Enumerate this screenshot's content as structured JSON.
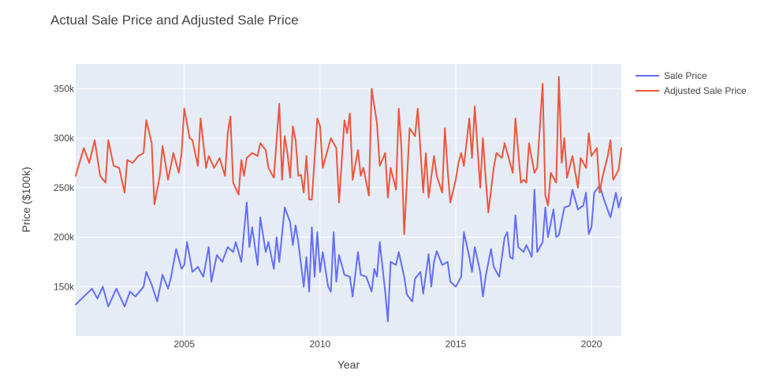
{
  "chart_data": {
    "type": "line",
    "title": "Actual Sale Price and Adjusted Sale Price",
    "xlabel": "Year",
    "ylabel": "Price ($100k)",
    "xlim": [
      2001.0,
      2021.1
    ],
    "ylim": [
      100000,
      375000
    ],
    "x_ticks": [
      2005,
      2010,
      2015,
      2020
    ],
    "x_tick_labels": [
      "2005",
      "2010",
      "2015",
      "2020"
    ],
    "y_ticks": [
      150000,
      200000,
      250000,
      300000,
      350000
    ],
    "y_tick_labels": [
      "150k",
      "200k",
      "250k",
      "300k",
      "350k"
    ],
    "grid": true,
    "legend_position": "right",
    "plot_bgcolor": "#E5ECF6",
    "series": [
      {
        "name": "Sale Price",
        "color": "#636EFA",
        "keypoints": [
          [
            2001.0,
            132000
          ],
          [
            2001.3,
            140000
          ],
          [
            2001.6,
            148000
          ],
          [
            2001.8,
            138000
          ],
          [
            2002.0,
            150000
          ],
          [
            2002.2,
            130000
          ],
          [
            2002.5,
            148000
          ],
          [
            2002.8,
            130000
          ],
          [
            2003.0,
            145000
          ],
          [
            2003.2,
            140000
          ],
          [
            2003.5,
            150000
          ],
          [
            2003.6,
            165000
          ],
          [
            2003.8,
            152000
          ],
          [
            2004.0,
            135000
          ],
          [
            2004.2,
            162000
          ],
          [
            2004.4,
            148000
          ],
          [
            2004.5,
            158000
          ],
          [
            2004.7,
            188000
          ],
          [
            2004.9,
            168000
          ],
          [
            2005.0,
            172000
          ],
          [
            2005.1,
            195000
          ],
          [
            2005.3,
            165000
          ],
          [
            2005.5,
            170000
          ],
          [
            2005.7,
            160000
          ],
          [
            2005.9,
            190000
          ],
          [
            2006.0,
            155000
          ],
          [
            2006.2,
            182000
          ],
          [
            2006.4,
            175000
          ],
          [
            2006.6,
            190000
          ],
          [
            2006.8,
            185000
          ],
          [
            2006.9,
            195000
          ],
          [
            2007.1,
            175000
          ],
          [
            2007.3,
            235000
          ],
          [
            2007.4,
            190000
          ],
          [
            2007.5,
            210000
          ],
          [
            2007.7,
            172000
          ],
          [
            2007.8,
            220000
          ],
          [
            2008.0,
            185000
          ],
          [
            2008.1,
            195000
          ],
          [
            2008.3,
            168000
          ],
          [
            2008.4,
            200000
          ],
          [
            2008.5,
            175000
          ],
          [
            2008.7,
            230000
          ],
          [
            2008.9,
            215000
          ],
          [
            2009.0,
            192000
          ],
          [
            2009.1,
            212000
          ],
          [
            2009.2,
            195000
          ],
          [
            2009.4,
            150000
          ],
          [
            2009.5,
            180000
          ],
          [
            2009.6,
            145000
          ],
          [
            2009.7,
            210000
          ],
          [
            2009.8,
            160000
          ],
          [
            2009.9,
            205000
          ],
          [
            2010.0,
            165000
          ],
          [
            2010.1,
            185000
          ],
          [
            2010.3,
            150000
          ],
          [
            2010.4,
            145000
          ],
          [
            2010.5,
            205000
          ],
          [
            2010.6,
            155000
          ],
          [
            2010.7,
            182000
          ],
          [
            2010.9,
            162000
          ],
          [
            2011.1,
            160000
          ],
          [
            2011.2,
            140000
          ],
          [
            2011.4,
            185000
          ],
          [
            2011.5,
            162000
          ],
          [
            2011.7,
            160000
          ],
          [
            2011.9,
            145000
          ],
          [
            2012.0,
            168000
          ],
          [
            2012.1,
            160000
          ],
          [
            2012.2,
            195000
          ],
          [
            2012.4,
            145000
          ],
          [
            2012.5,
            115000
          ],
          [
            2012.6,
            175000
          ],
          [
            2012.8,
            172000
          ],
          [
            2012.9,
            185000
          ],
          [
            2013.1,
            160000
          ],
          [
            2013.2,
            142000
          ],
          [
            2013.4,
            135000
          ],
          [
            2013.5,
            158000
          ],
          [
            2013.7,
            165000
          ],
          [
            2013.8,
            143000
          ],
          [
            2014.0,
            183000
          ],
          [
            2014.1,
            150000
          ],
          [
            2014.2,
            175000
          ],
          [
            2014.3,
            186000
          ],
          [
            2014.5,
            172000
          ],
          [
            2014.7,
            175000
          ],
          [
            2014.8,
            155000
          ],
          [
            2015.0,
            150000
          ],
          [
            2015.2,
            160000
          ],
          [
            2015.3,
            205000
          ],
          [
            2015.5,
            180000
          ],
          [
            2015.6,
            165000
          ],
          [
            2015.7,
            190000
          ],
          [
            2015.9,
            165000
          ],
          [
            2016.0,
            140000
          ],
          [
            2016.1,
            160000
          ],
          [
            2016.3,
            188000
          ],
          [
            2016.4,
            170000
          ],
          [
            2016.6,
            160000
          ],
          [
            2016.8,
            200000
          ],
          [
            2016.9,
            205000
          ],
          [
            2017.0,
            180000
          ],
          [
            2017.1,
            178000
          ],
          [
            2017.2,
            222000
          ],
          [
            2017.3,
            190000
          ],
          [
            2017.5,
            185000
          ],
          [
            2017.6,
            192000
          ],
          [
            2017.8,
            180000
          ],
          [
            2017.9,
            248000
          ],
          [
            2018.0,
            185000
          ],
          [
            2018.2,
            195000
          ],
          [
            2018.3,
            230000
          ],
          [
            2018.4,
            200000
          ],
          [
            2018.6,
            228000
          ],
          [
            2018.7,
            200000
          ],
          [
            2018.8,
            202000
          ],
          [
            2019.0,
            230000
          ],
          [
            2019.2,
            232000
          ],
          [
            2019.3,
            248000
          ],
          [
            2019.5,
            228000
          ],
          [
            2019.7,
            232000
          ],
          [
            2019.8,
            245000
          ],
          [
            2019.9,
            203000
          ],
          [
            2020.0,
            210000
          ],
          [
            2020.1,
            245000
          ],
          [
            2020.3,
            252000
          ],
          [
            2020.5,
            235000
          ],
          [
            2020.7,
            220000
          ],
          [
            2020.9,
            245000
          ],
          [
            2021.0,
            230000
          ],
          [
            2021.1,
            240000
          ]
        ],
        "keypoints_note": null
      },
      {
        "name": "Adjusted Sale Price",
        "color": "#EF553B",
        "keypoints": [
          [
            2001.0,
            262000
          ],
          [
            2001.3,
            290000
          ],
          [
            2001.5,
            275000
          ],
          [
            2001.7,
            298000
          ],
          [
            2001.9,
            262000
          ],
          [
            2002.1,
            255000
          ],
          [
            2002.2,
            298000
          ],
          [
            2002.4,
            272000
          ],
          [
            2002.6,
            270000
          ],
          [
            2002.8,
            245000
          ],
          [
            2002.9,
            278000
          ],
          [
            2003.1,
            275000
          ],
          [
            2003.3,
            282000
          ],
          [
            2003.5,
            285000
          ],
          [
            2003.6,
            318000
          ],
          [
            2003.8,
            295000
          ],
          [
            2003.9,
            233000
          ],
          [
            2004.1,
            262000
          ],
          [
            2004.2,
            292000
          ],
          [
            2004.4,
            258000
          ],
          [
            2004.6,
            285000
          ],
          [
            2004.8,
            265000
          ],
          [
            2004.9,
            285000
          ],
          [
            2005.0,
            330000
          ],
          [
            2005.2,
            300000
          ],
          [
            2005.3,
            298000
          ],
          [
            2005.5,
            272000
          ],
          [
            2005.6,
            320000
          ],
          [
            2005.8,
            270000
          ],
          [
            2005.9,
            282000
          ],
          [
            2006.1,
            270000
          ],
          [
            2006.3,
            280000
          ],
          [
            2006.5,
            262000
          ],
          [
            2006.6,
            305000
          ],
          [
            2006.7,
            322000
          ],
          [
            2006.8,
            255000
          ],
          [
            2007.0,
            243000
          ],
          [
            2007.1,
            278000
          ],
          [
            2007.2,
            262000
          ],
          [
            2007.3,
            280000
          ],
          [
            2007.5,
            285000
          ],
          [
            2007.7,
            282000
          ],
          [
            2007.8,
            295000
          ],
          [
            2008.0,
            288000
          ],
          [
            2008.1,
            270000
          ],
          [
            2008.3,
            260000
          ],
          [
            2008.5,
            335000
          ],
          [
            2008.6,
            258000
          ],
          [
            2008.7,
            302000
          ],
          [
            2008.8,
            285000
          ],
          [
            2008.9,
            260000
          ],
          [
            2009.0,
            312000
          ],
          [
            2009.1,
            298000
          ],
          [
            2009.2,
            262000
          ],
          [
            2009.3,
            263000
          ],
          [
            2009.4,
            245000
          ],
          [
            2009.5,
            282000
          ],
          [
            2009.6,
            238000
          ],
          [
            2009.7,
            238000
          ],
          [
            2009.9,
            320000
          ],
          [
            2010.0,
            312000
          ],
          [
            2010.1,
            270000
          ],
          [
            2010.2,
            280000
          ],
          [
            2010.4,
            300000
          ],
          [
            2010.6,
            290000
          ],
          [
            2010.7,
            235000
          ],
          [
            2010.9,
            318000
          ],
          [
            2011.0,
            305000
          ],
          [
            2011.1,
            325000
          ],
          [
            2011.2,
            258000
          ],
          [
            2011.4,
            288000
          ],
          [
            2011.5,
            262000
          ],
          [
            2011.6,
            270000
          ],
          [
            2011.8,
            242000
          ],
          [
            2011.9,
            350000
          ],
          [
            2012.1,
            315000
          ],
          [
            2012.2,
            272000
          ],
          [
            2012.4,
            285000
          ],
          [
            2012.5,
            240000
          ],
          [
            2012.6,
            270000
          ],
          [
            2012.8,
            248000
          ],
          [
            2012.9,
            330000
          ],
          [
            2013.0,
            290000
          ],
          [
            2013.1,
            203000
          ],
          [
            2013.3,
            310000
          ],
          [
            2013.5,
            302000
          ],
          [
            2013.6,
            330000
          ],
          [
            2013.8,
            245000
          ],
          [
            2013.9,
            285000
          ],
          [
            2014.0,
            240000
          ],
          [
            2014.2,
            282000
          ],
          [
            2014.3,
            262000
          ],
          [
            2014.5,
            245000
          ],
          [
            2014.6,
            310000
          ],
          [
            2014.7,
            268000
          ],
          [
            2014.8,
            235000
          ],
          [
            2015.0,
            258000
          ],
          [
            2015.1,
            275000
          ],
          [
            2015.2,
            285000
          ],
          [
            2015.3,
            272000
          ],
          [
            2015.5,
            320000
          ],
          [
            2015.6,
            280000
          ],
          [
            2015.7,
            332000
          ],
          [
            2015.9,
            250000
          ],
          [
            2016.0,
            300000
          ],
          [
            2016.1,
            260000
          ],
          [
            2016.2,
            225000
          ],
          [
            2016.4,
            270000
          ],
          [
            2016.5,
            285000
          ],
          [
            2016.7,
            280000
          ],
          [
            2016.8,
            295000
          ],
          [
            2016.9,
            285000
          ],
          [
            2017.1,
            265000
          ],
          [
            2017.2,
            320000
          ],
          [
            2017.4,
            255000
          ],
          [
            2017.5,
            258000
          ],
          [
            2017.6,
            255000
          ],
          [
            2017.7,
            295000
          ],
          [
            2017.9,
            265000
          ],
          [
            2018.0,
            270000
          ],
          [
            2018.2,
            355000
          ],
          [
            2018.3,
            242000
          ],
          [
            2018.4,
            232000
          ],
          [
            2018.5,
            265000
          ],
          [
            2018.7,
            255000
          ],
          [
            2018.8,
            362000
          ],
          [
            2018.9,
            275000
          ],
          [
            2019.0,
            300000
          ],
          [
            2019.1,
            260000
          ],
          [
            2019.3,
            282000
          ],
          [
            2019.5,
            250000
          ],
          [
            2019.6,
            280000
          ],
          [
            2019.8,
            270000
          ],
          [
            2019.9,
            305000
          ],
          [
            2020.0,
            282000
          ],
          [
            2020.2,
            290000
          ],
          [
            2020.3,
            245000
          ],
          [
            2020.4,
            260000
          ],
          [
            2020.6,
            282000
          ],
          [
            2020.7,
            298000
          ],
          [
            2020.8,
            258000
          ],
          [
            2021.0,
            268000
          ],
          [
            2021.1,
            290000
          ]
        ],
        "keypoints_note": null
      }
    ]
  }
}
